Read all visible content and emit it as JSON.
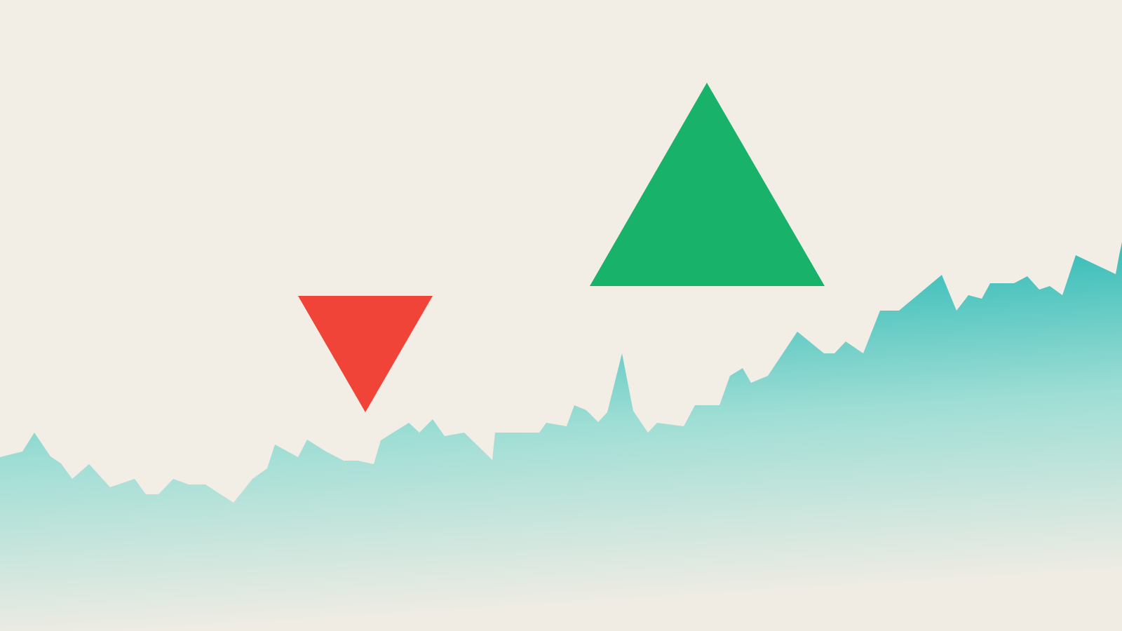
{
  "colors": {
    "background": "#f2eee6",
    "area_top": "#07adab",
    "area_mid": "#9fded5",
    "area_bottom": "#f0ece4",
    "down_arrow": "#f04438",
    "up_arrow": "#18b26b"
  },
  "icons": {
    "down": "triangle-down",
    "up": "triangle-up"
  }
}
